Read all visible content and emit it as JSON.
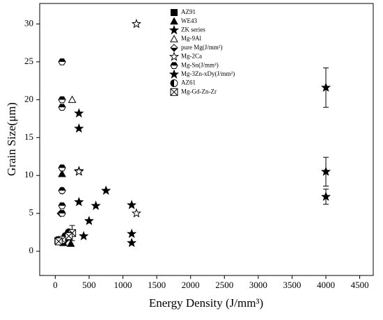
{
  "chart_data": {
    "type": "scatter",
    "xlabel": "Energy Density (J/mm³)",
    "ylabel": "Grain Size(μm)",
    "xlim": [
      -230,
      4700
    ],
    "ylim": [
      -3.2,
      32.7
    ],
    "xticks": [
      0,
      500,
      1000,
      1500,
      2000,
      2500,
      3000,
      3500,
      4000,
      4500
    ],
    "yticks": [
      0,
      5,
      10,
      15,
      20,
      25,
      30
    ],
    "legend": "upper center",
    "series": [
      {
        "name": "AZ91",
        "color": "#000000",
        "marker": "square-filled",
        "x": [
          40,
          60
        ],
        "values": [
          1.4,
          1.5
        ]
      },
      {
        "name": "WE43",
        "color": "#000000",
        "marker": "triangle-filled",
        "x": [
          100,
          120,
          230
        ],
        "values": [
          10.2,
          1.1,
          1.0
        ]
      },
      {
        "name": "ZK series",
        "color": "#000000",
        "marker": "star-filled",
        "x": [
          350,
          350,
          350,
          350,
          420,
          500,
          600,
          750,
          1130,
          1130,
          1130
        ],
        "values": [
          18.2,
          16.2,
          10.6,
          6.5,
          2.0,
          4.0,
          6.0,
          8.0,
          6.1,
          2.3,
          1.1
        ]
      },
      {
        "name": "Mg-9Al",
        "color": "#000000",
        "marker": "triangle-open",
        "x": [
          250,
          120
        ],
        "values": [
          20.0,
          1.8
        ]
      },
      {
        "name": "pure Mg(J/mm²)",
        "color": "#000000",
        "marker": "diamond-half",
        "x": [
          80,
          100,
          150
        ],
        "values": [
          5.0,
          8.0,
          1.5
        ]
      },
      {
        "name": "Mg-2Ca",
        "color": "#000000",
        "marker": "star-open",
        "x": [
          1200,
          1200,
          350
        ],
        "values": [
          30.0,
          5.0,
          10.5
        ]
      },
      {
        "name": "Mg-Sn(J/mm²)",
        "color": "#000000",
        "marker": "hexagon-half",
        "x": [
          100,
          100,
          100,
          100,
          100,
          100,
          100
        ],
        "values": [
          25.0,
          20.0,
          19.0,
          11.0,
          8.0,
          6.0,
          5.0
        ]
      },
      {
        "name": "Mg-3Zn-xDy(J/mm²)",
        "color": "#000000",
        "marker": "star-filled",
        "x": [
          4000,
          4000,
          4000
        ],
        "values": [
          21.6,
          10.5,
          7.2
        ],
        "errors": [
          2.6,
          1.9,
          1.0
        ]
      },
      {
        "name": "AZ61",
        "color": "#000000",
        "marker": "circle-half",
        "x": [
          200,
          150
        ],
        "values": [
          2.5,
          2.0
        ]
      },
      {
        "name": "Mg-Gd-Zn-Zr",
        "color": "#000000",
        "marker": "square-x",
        "x": [
          250,
          200,
          100,
          50
        ],
        "values": [
          2.4,
          2.0,
          1.5,
          1.3
        ],
        "errors": [
          1.0,
          0.5,
          0.3,
          0.2
        ]
      }
    ]
  }
}
